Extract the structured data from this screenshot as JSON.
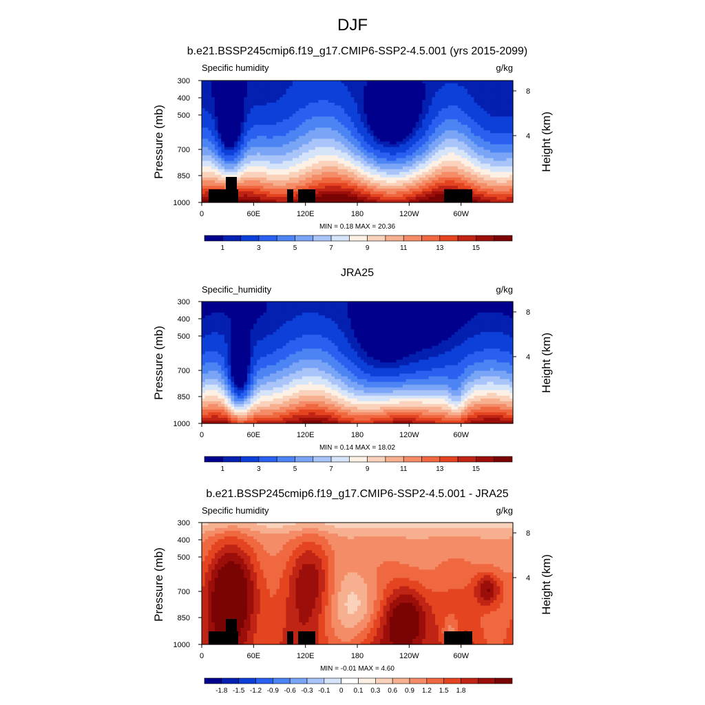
{
  "title": "DJF",
  "colors": {
    "abs_scale": [
      "#00008c",
      "#0420b0",
      "#0c40d8",
      "#2a60f0",
      "#4c84f4",
      "#7aa4f6",
      "#a8c4f8",
      "#d6e4fa",
      "#fdf0e4",
      "#fad2bc",
      "#f6b090",
      "#f48c68",
      "#f06840",
      "#e44420",
      "#c02414",
      "#9c0e0a",
      "#7a0404"
    ],
    "diff_scale": [
      "#00008c",
      "#0420b0",
      "#0c40d8",
      "#2a60f0",
      "#4c84f4",
      "#7aa4f6",
      "#a8c4f8",
      "#d6e4fa",
      "#ffffff",
      "#fdf0e4",
      "#fad2bc",
      "#f6b090",
      "#f48c68",
      "#f06840",
      "#e44420",
      "#c02414",
      "#9c0e0a",
      "#7a0404"
    ],
    "terrain": "#000000"
  },
  "chart_data": [
    {
      "type": "heatmap",
      "title": "b.e21.BSSP245cmip6.f19_g17.CMIP6-SSP2-4.5.001 (yrs 2015-2099)",
      "left_label": "Specific humidity",
      "units": "g/kg",
      "ylabel": "Pressure (mb)",
      "ylabel_right": "Height (km)",
      "x_ticks": [
        "0",
        "60E",
        "120E",
        "180",
        "120W",
        "60W"
      ],
      "y_ticks": [
        "300",
        "400",
        "500",
        "700",
        "850",
        "1000"
      ],
      "right_ticks": [
        "8",
        "4"
      ],
      "stats": "MIN =   0.18  MAX =  20.36",
      "levels": [
        0.5,
        1,
        2,
        3,
        4,
        5,
        6,
        7,
        8,
        9,
        10,
        11,
        12,
        13,
        14,
        15,
        16
      ],
      "colorbar_labels": [
        "1",
        "3",
        "5",
        "7",
        "9",
        "11",
        "13",
        "15"
      ]
    },
    {
      "type": "heatmap",
      "title": "JRA25",
      "left_label": "Specific_humidity",
      "units": "g/kg",
      "ylabel": "Pressure (mb)",
      "ylabel_right": "Height (km)",
      "x_ticks": [
        "0",
        "60E",
        "120E",
        "180",
        "120W",
        "60W"
      ],
      "y_ticks": [
        "300",
        "400",
        "500",
        "700",
        "850",
        "1000"
      ],
      "right_ticks": [
        "8",
        "4"
      ],
      "stats": "MIN =   0.14  MAX =  18.02",
      "levels": [
        0.5,
        1,
        2,
        3,
        4,
        5,
        6,
        7,
        8,
        9,
        10,
        11,
        12,
        13,
        14,
        15,
        16
      ],
      "colorbar_labels": [
        "1",
        "3",
        "5",
        "7",
        "9",
        "11",
        "13",
        "15"
      ]
    },
    {
      "type": "heatmap",
      "title": "b.e21.BSSP245cmip6.f19_g17.CMIP6-SSP2-4.5.001 - JRA25",
      "left_label": "Specific humidity",
      "units": "g/kg",
      "ylabel": "Pressure (mb)",
      "ylabel_right": "Height (km)",
      "x_ticks": [
        "0",
        "60E",
        "120E",
        "180",
        "120W",
        "60W"
      ],
      "y_ticks": [
        "300",
        "400",
        "500",
        "700",
        "850",
        "1000"
      ],
      "right_ticks": [
        "8",
        "4"
      ],
      "stats": "MIN =  -0.01  MAX =   4.60",
      "levels": [
        -2.1,
        -1.8,
        -1.5,
        -1.2,
        -0.9,
        -0.6,
        -0.3,
        -0.1,
        0,
        0.1,
        0.3,
        0.6,
        0.9,
        1.2,
        1.5,
        1.8,
        2.1
      ],
      "colorbar_labels": [
        "-1.8",
        "-1.5",
        "-1.2",
        "-0.9",
        "-0.6",
        "-0.3",
        "-0.1",
        "0",
        "0.1",
        "0.3",
        "0.6",
        "0.9",
        "1.2",
        "1.5",
        "1.8"
      ]
    }
  ]
}
